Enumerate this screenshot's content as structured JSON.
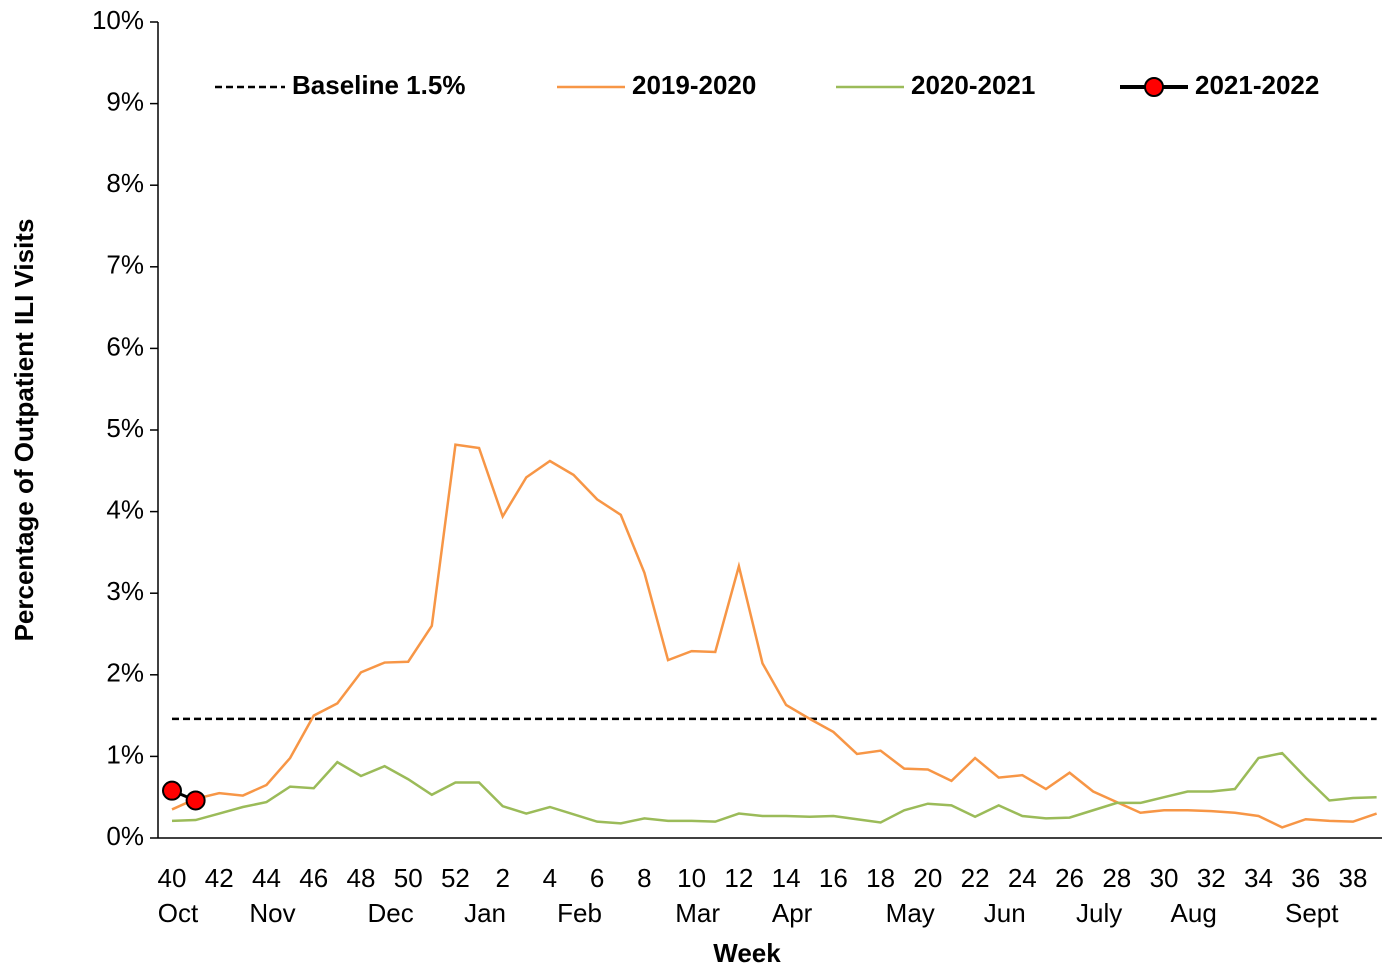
{
  "chart_data": {
    "type": "line",
    "xlabel": "Week",
    "ylabel": "Percentage of Outpatient ILI Visits",
    "categories": [
      "40",
      null,
      "42",
      null,
      "44",
      null,
      "46",
      null,
      "48",
      null,
      "50",
      null,
      "52",
      null,
      "2",
      null,
      "4",
      null,
      "6",
      null,
      "8",
      null,
      "10",
      null,
      "12",
      null,
      "14",
      null,
      "16",
      null,
      "18",
      null,
      "20",
      null,
      "22",
      null,
      "24",
      null,
      "26",
      null,
      "28",
      null,
      "30",
      null,
      "32",
      null,
      "34",
      null,
      "36",
      null,
      "38",
      null
    ],
    "months": [
      "Oct",
      null,
      null,
      null,
      "Nov",
      null,
      null,
      null,
      null,
      "Dec",
      null,
      null,
      null,
      "Jan",
      null,
      null,
      null,
      "Feb",
      null,
      null,
      null,
      null,
      "Mar",
      null,
      null,
      null,
      "Apr",
      null,
      null,
      null,
      null,
      "May",
      null,
      null,
      null,
      "Jun",
      null,
      null,
      null,
      "July",
      null,
      null,
      null,
      "Aug",
      null,
      null,
      null,
      null,
      "Sept",
      null,
      null,
      null
    ],
    "baseline": {
      "name": "Baseline 1.5%",
      "value": 1.46,
      "color": "#000000"
    },
    "series": [
      {
        "name": "2019-2020",
        "color": "#f79646",
        "values": [
          0.35,
          0.48,
          0.55,
          0.52,
          0.65,
          0.98,
          1.5,
          1.65,
          2.03,
          2.15,
          2.16,
          2.6,
          4.82,
          4.78,
          3.94,
          4.42,
          4.62,
          4.45,
          4.15,
          3.96,
          3.25,
          2.18,
          2.29,
          2.28,
          3.33,
          2.14,
          1.63,
          1.46,
          1.3,
          1.03,
          1.07,
          0.85,
          0.84,
          0.7,
          0.98,
          0.74,
          0.77,
          0.6,
          0.8,
          0.57,
          0.44,
          0.31,
          0.34,
          0.34,
          0.33,
          0.31,
          0.27,
          0.13,
          0.23,
          0.21,
          0.2,
          0.3
        ]
      },
      {
        "name": "2020-2021",
        "color": "#9bbb59",
        "values": [
          0.21,
          0.22,
          0.3,
          0.38,
          0.44,
          0.63,
          0.61,
          0.93,
          0.76,
          0.88,
          0.72,
          0.53,
          0.68,
          0.68,
          0.39,
          0.3,
          0.38,
          0.29,
          0.2,
          0.18,
          0.24,
          0.21,
          0.21,
          0.2,
          0.3,
          0.27,
          0.27,
          0.26,
          0.27,
          0.23,
          0.19,
          0.34,
          0.42,
          0.4,
          0.26,
          0.4,
          0.27,
          0.24,
          0.25,
          0.34,
          0.43,
          0.43,
          0.5,
          0.57,
          0.57,
          0.6,
          0.98,
          1.04,
          0.74,
          0.46,
          0.49,
          0.5
        ]
      },
      {
        "name": "2021-2022",
        "color": "#000000",
        "marker_color": "#ff0000",
        "marker": true,
        "values": [
          0.58,
          0.46,
          null,
          null,
          null,
          null,
          null,
          null,
          null,
          null,
          null,
          null,
          null,
          null,
          null,
          null,
          null,
          null,
          null,
          null,
          null,
          null,
          null,
          null,
          null,
          null,
          null,
          null,
          null,
          null,
          null,
          null,
          null,
          null,
          null,
          null,
          null,
          null,
          null,
          null,
          null,
          null,
          null,
          null,
          null,
          null,
          null,
          null,
          null,
          null,
          null,
          null
        ]
      }
    ],
    "ylim": [
      0,
      10
    ],
    "yticks": [
      {
        "value": 0,
        "label": "0%"
      },
      {
        "value": 1,
        "label": "1%"
      },
      {
        "value": 2,
        "label": "2%"
      },
      {
        "value": 3,
        "label": "3%"
      },
      {
        "value": 4,
        "label": "4%"
      },
      {
        "value": 5,
        "label": "5%"
      },
      {
        "value": 6,
        "label": "6%"
      },
      {
        "value": 7,
        "label": "7%"
      },
      {
        "value": 8,
        "label": "8%"
      },
      {
        "value": 9,
        "label": "9%"
      },
      {
        "value": 10,
        "label": "10%"
      }
    ],
    "legend": "top"
  }
}
